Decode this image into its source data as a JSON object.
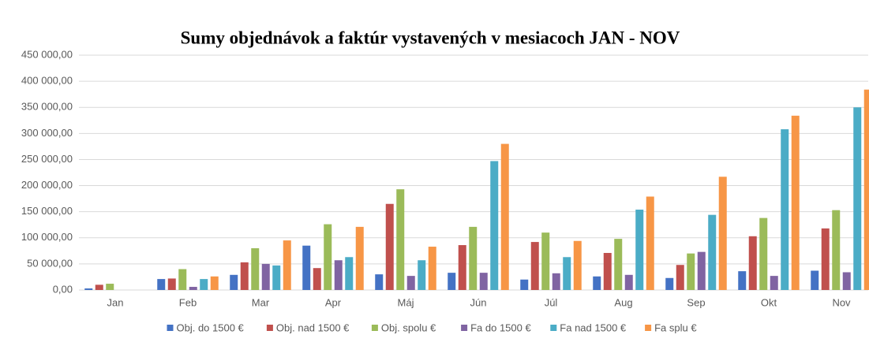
{
  "chart_data": {
    "type": "bar",
    "title": "Sumy objednávok a faktúr vystavených v mesiacoch JAN - NOV",
    "categories": [
      "Jan",
      "Feb",
      "Mar",
      "Apr",
      "Máj",
      "Jún",
      "Júl",
      "Aug",
      "Sep",
      "Okt",
      "Nov"
    ],
    "series": [
      {
        "name": "Obj. do 1500 €",
        "color": "#4472c4",
        "values": [
          3000,
          21000,
          29000,
          85000,
          30000,
          33000,
          20000,
          26000,
          23000,
          36000,
          37000
        ]
      },
      {
        "name": "Obj. nad 1500 €",
        "color": "#c0504d",
        "values": [
          10000,
          22000,
          53000,
          42000,
          165000,
          86000,
          92000,
          71000,
          48000,
          103000,
          118000
        ]
      },
      {
        "name": "Obj. spolu €",
        "color": "#9bbb59",
        "values": [
          12000,
          40000,
          80000,
          126000,
          193000,
          121000,
          110000,
          98000,
          70000,
          138000,
          153000
        ]
      },
      {
        "name": "Fa do 1500 €",
        "color": "#8064a2",
        "values": [
          0,
          6000,
          50000,
          57000,
          27000,
          33000,
          32000,
          29000,
          73000,
          27000,
          34000
        ]
      },
      {
        "name": "Fa nad 1500 €",
        "color": "#4bacc6",
        "values": [
          0,
          21000,
          47000,
          63000,
          57000,
          247000,
          63000,
          154000,
          144000,
          308000,
          350000
        ]
      },
      {
        "name": "Fa splu €",
        "color": "#f79646",
        "values": [
          0,
          26000,
          95000,
          121000,
          83000,
          280000,
          94000,
          179000,
          217000,
          334000,
          384000
        ]
      }
    ],
    "ylim": [
      0,
      450000
    ],
    "yticks": [
      {
        "value": 0,
        "label": "0,00"
      },
      {
        "value": 50000,
        "label": "50 000,00"
      },
      {
        "value": 100000,
        "label": "100 000,00"
      },
      {
        "value": 150000,
        "label": "150 000,00"
      },
      {
        "value": 200000,
        "label": "200 000,00"
      },
      {
        "value": 250000,
        "label": "250 000,00"
      },
      {
        "value": 300000,
        "label": "300 000,00"
      },
      {
        "value": 350000,
        "label": "350 000,00"
      },
      {
        "value": 400000,
        "label": "400 000,00"
      },
      {
        "value": 450000,
        "label": "450 000,00"
      }
    ],
    "grid": true,
    "legend": "bottom"
  }
}
